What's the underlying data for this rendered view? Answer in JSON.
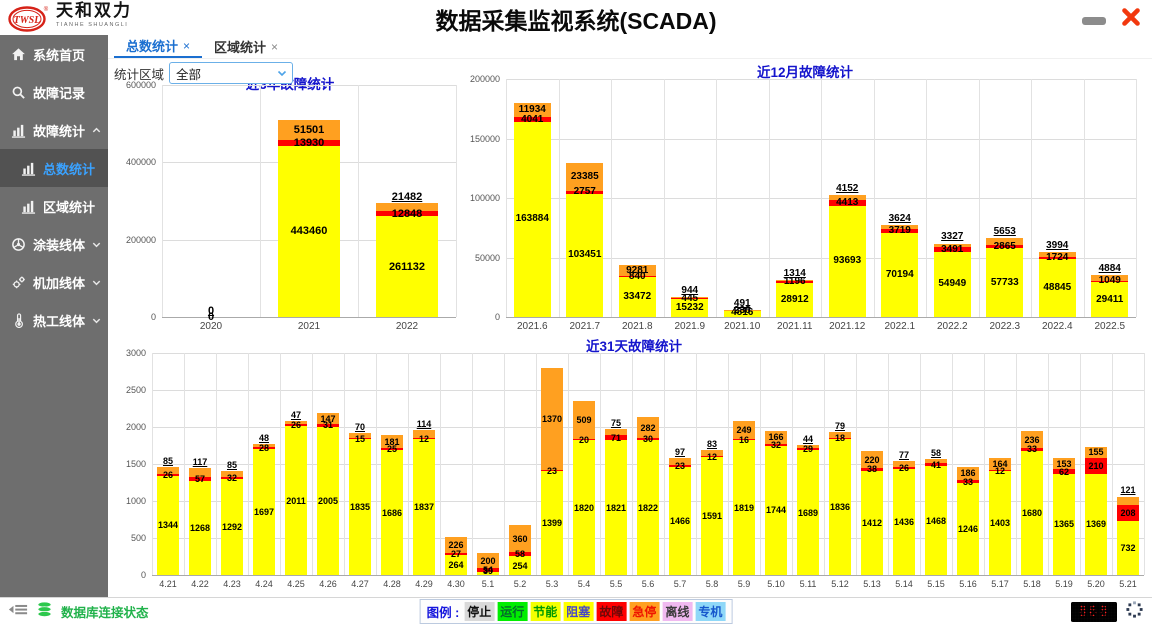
{
  "header": {
    "logo": {
      "abbr": "TWSL",
      "name": "天和双力",
      "subtitle": "TIANHE SHUANGLI"
    },
    "title": "数据采集监视系统(SCADA)"
  },
  "sidebar": {
    "items": [
      {
        "id": "home",
        "label": "系统首页",
        "icon": "home-icon"
      },
      {
        "id": "fault-records",
        "label": "故障记录",
        "icon": "search-icon"
      },
      {
        "id": "fault-stats",
        "label": "故障统计",
        "icon": "bar-chart-icon",
        "arrow": "up"
      },
      {
        "id": "total-stats",
        "label": "总数统计",
        "icon": "bar-chart-icon",
        "sub": true,
        "active": true
      },
      {
        "id": "region-stats",
        "label": "区域统计",
        "icon": "bar-chart-icon",
        "sub": true
      },
      {
        "id": "coating-line",
        "label": "涂装线体",
        "icon": "wheel-icon",
        "arrow": "down"
      },
      {
        "id": "machining-line",
        "label": "机加线体",
        "icon": "gears-icon",
        "arrow": "down"
      },
      {
        "id": "thermal-line",
        "label": "热工线体",
        "icon": "thermometer-icon",
        "arrow": "down"
      }
    ]
  },
  "tabs": [
    {
      "id": "total-stats",
      "label": "总数统计",
      "close": "×",
      "active": true
    },
    {
      "id": "region-stats",
      "label": "区域统计",
      "close": "×",
      "active": false
    }
  ],
  "filter": {
    "label": "统计区域",
    "value": "全部"
  },
  "chart_data": [
    {
      "type": "bar",
      "title": "近3年故障统计",
      "categories": [
        "2020",
        "2021",
        "2022"
      ],
      "series": [
        {
          "name": "阻塞",
          "color": "#ffff00",
          "values": [
            0,
            443460,
            261132
          ]
        },
        {
          "name": "故障",
          "color": "#ff0000",
          "values": [
            0,
            13930,
            12848
          ]
        },
        {
          "name": "急停",
          "color": "#ffa020",
          "values": [
            0,
            51501,
            21482
          ]
        }
      ],
      "ylim": [
        0,
        600000
      ],
      "yticks": [
        0,
        200000,
        400000,
        600000
      ]
    },
    {
      "type": "bar",
      "title": "近12月故障统计",
      "categories": [
        "2021.6",
        "2021.7",
        "2021.8",
        "2021.9",
        "2021.10",
        "2021.11",
        "2021.12",
        "2022.1",
        "2022.2",
        "2022.3",
        "2022.4",
        "2022.5"
      ],
      "series": [
        {
          "name": "阻塞",
          "color": "#ffff00",
          "values": [
            163884,
            103451,
            33472,
            15232,
            4816,
            28912,
            93693,
            70194,
            54949,
            57733,
            48845,
            29411
          ]
        },
        {
          "name": "故障",
          "color": "#ff0000",
          "values": [
            4041,
            2757,
            840,
            445,
            238,
            1196,
            4413,
            3719,
            3491,
            2865,
            1724,
            1049
          ]
        },
        {
          "name": "急停",
          "color": "#ffa020",
          "values": [
            11934,
            23385,
            9281,
            944,
            491,
            1314,
            4152,
            3624,
            3327,
            5653,
            3994,
            4884
          ]
        }
      ],
      "ylim": [
        0,
        200000
      ],
      "yticks": [
        0,
        50000,
        100000,
        150000,
        200000
      ]
    },
    {
      "type": "bar",
      "title": "近31天故障统计",
      "categories": [
        "4.21",
        "4.22",
        "4.23",
        "4.24",
        "4.25",
        "4.26",
        "4.27",
        "4.28",
        "4.29",
        "4.30",
        "5.1",
        "5.2",
        "5.3",
        "5.4",
        "5.5",
        "5.6",
        "5.7",
        "5.8",
        "5.9",
        "5.10",
        "5.11",
        "5.12",
        "5.13",
        "5.14",
        "5.15",
        "5.16",
        "5.17",
        "5.18",
        "5.19",
        "5.20",
        "5.21"
      ],
      "series": [
        {
          "name": "阻塞",
          "color": "#ffff00",
          "values": [
            1344,
            1268,
            1292,
            1697,
            2011,
            2005,
            1835,
            1686,
            1837,
            264,
            39,
            254,
            1399,
            1820,
            1821,
            1822,
            1466,
            1591,
            1819,
            1744,
            1689,
            1836,
            1412,
            1436,
            1468,
            1246,
            1403,
            1680,
            1365,
            1369,
            732
          ]
        },
        {
          "name": "故障",
          "color": "#ff0000",
          "values": [
            26,
            57,
            32,
            28,
            26,
            31,
            15,
            25,
            12,
            27,
            54,
            58,
            23,
            20,
            71,
            30,
            23,
            12,
            16,
            32,
            29,
            18,
            38,
            26,
            41,
            33,
            12,
            33,
            62,
            210,
            208
          ]
        },
        {
          "name": "急停",
          "color": "#ffa020",
          "values": [
            85,
            117,
            85,
            48,
            47,
            147,
            70,
            181,
            114,
            226,
            200,
            360,
            1370,
            509,
            75,
            282,
            97,
            83,
            249,
            166,
            44,
            79,
            220,
            77,
            58,
            186,
            164,
            236,
            153,
            155,
            121
          ]
        }
      ],
      "ylim": [
        0,
        3000
      ],
      "yticks": [
        0,
        500,
        1000,
        1500,
        2000,
        2500,
        3000
      ]
    }
  ],
  "statusbar": {
    "db_status": "数据库连接状态",
    "legend_label": "图例 :",
    "legend": [
      {
        "label": "停止",
        "bg": "#d9d9d9",
        "fg": "#111111"
      },
      {
        "label": "运行",
        "bg": "#00ee00",
        "fg": "#046a2c"
      },
      {
        "label": "节能",
        "bg": "#f4ff00",
        "fg": "#019a01"
      },
      {
        "label": "阻塞",
        "bg": "#ffff00",
        "fg": "#4747c8"
      },
      {
        "label": "故障",
        "bg": "#ff0000",
        "fg": "#6e0808"
      },
      {
        "label": "急停",
        "bg": "#ffa020",
        "fg": "#ee1400"
      },
      {
        "label": "离线",
        "bg": "#f0b9f0",
        "fg": "#3a3a3a"
      },
      {
        "label": "专机",
        "bg": "#8fd8f8",
        "fg": "#1557cc"
      }
    ],
    "led_value": "888"
  }
}
